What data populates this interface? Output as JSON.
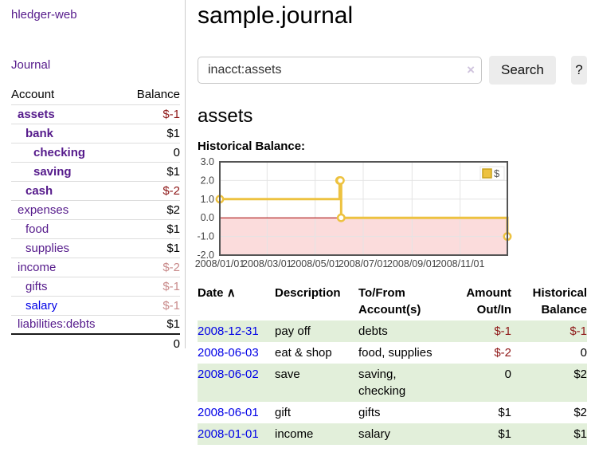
{
  "app": {
    "brand": "hledger-web"
  },
  "sidebar": {
    "nav": {
      "journal": "Journal"
    },
    "table": {
      "col_account": "Account",
      "col_balance": "Balance",
      "accounts": [
        {
          "name": "assets",
          "balance": "$-1"
        },
        {
          "name": "bank",
          "balance": "$1"
        },
        {
          "name": "checking",
          "balance": "0"
        },
        {
          "name": "saving",
          "balance": "$1"
        },
        {
          "name": "cash",
          "balance": "$-2"
        },
        {
          "name": "expenses",
          "balance": "$2"
        },
        {
          "name": "food",
          "balance": "$1"
        },
        {
          "name": "supplies",
          "balance": "$1"
        },
        {
          "name": "income",
          "balance": "$-2"
        },
        {
          "name": "gifts",
          "balance": "$-1"
        },
        {
          "name": "salary",
          "balance": "$-1"
        },
        {
          "name": "liabilities:debts",
          "balance": "$1"
        }
      ],
      "total": "0"
    }
  },
  "main": {
    "title": "sample.journal",
    "search": {
      "value": "inacct:assets",
      "clear_icon": "×",
      "button_label": "Search",
      "help_label": "?"
    },
    "account_heading": "assets",
    "chart_label": "Historical Balance:",
    "register": {
      "headers": {
        "date": "Date",
        "sort_icon": "∧",
        "description": "Description",
        "tofrom_line1": "To/From",
        "tofrom_line2": "Account(s)",
        "amount_line1": "Amount",
        "amount_line2": "Out/In",
        "balance_line1": "Historical",
        "balance_line2": "Balance"
      },
      "rows": [
        {
          "date": "2008-12-31",
          "description": "pay off",
          "accounts": "debts",
          "amount": "$-1",
          "balance": "$-1"
        },
        {
          "date": "2008-06-03",
          "description": "eat & shop",
          "accounts": "food, supplies",
          "amount": "$-2",
          "balance": "0"
        },
        {
          "date": "2008-06-02",
          "description": "save",
          "accounts": "saving, checking",
          "amount": "0",
          "balance": "$2"
        },
        {
          "date": "2008-06-01",
          "description": "gift",
          "accounts": "gifts",
          "amount": "$1",
          "balance": "$2"
        },
        {
          "date": "2008-01-01",
          "description": "income",
          "accounts": "salary",
          "amount": "$1",
          "balance": "$1"
        }
      ]
    }
  },
  "chart_data": {
    "type": "line",
    "step": true,
    "title": "Historical Balance",
    "legend": {
      "position": "top-right",
      "entries": [
        "$"
      ]
    },
    "series": [
      {
        "name": "$",
        "color": "#edc240",
        "points": [
          {
            "date": "2008-01-01",
            "value": 1
          },
          {
            "date": "2008-06-01",
            "value": 2
          },
          {
            "date": "2008-06-02",
            "value": 2
          },
          {
            "date": "2008-06-03",
            "value": 0
          },
          {
            "date": "2008-12-31",
            "value": -1
          }
        ]
      }
    ],
    "xrange": [
      "2008-01-01",
      "2008-12-31"
    ],
    "ylim": [
      -2,
      3
    ],
    "yticks": [
      "3.0",
      "2.0",
      "1.0",
      "0.0",
      "-1.0",
      "-2.0"
    ],
    "xticks": [
      "2008/01/01",
      "2008/03/01",
      "2008/05/01",
      "2008/07/01",
      "2008/09/01",
      "2008/11/01"
    ],
    "grid": true,
    "zero_line_color": "#aa0000",
    "negative_region_fill": "#fbdcdc",
    "border_color": "#545454",
    "grid_color": "#e4e4e4",
    "tick_label_color": "#444444"
  },
  "colors": {
    "link_purple": "#551a8b",
    "link_blue": "#0000e6",
    "negative": "#8e1717",
    "muted_negative": "#c98b8b",
    "row_stripe_green": "#e2efda",
    "series_gold": "#edc240"
  }
}
